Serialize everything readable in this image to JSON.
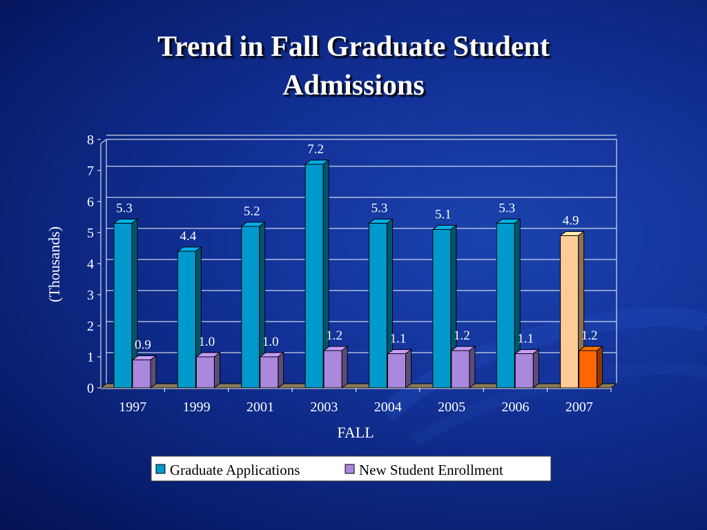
{
  "slide": {
    "title_line1": "Trend in Fall Graduate Student",
    "title_line2": "Admissions"
  },
  "colors": {
    "background": "#13339a",
    "applications": "#0099cc",
    "enrollment": "#aa88dd",
    "applications_highlight": "#ffcc99",
    "enrollment_highlight": "#ff6600",
    "label_text": "#ffffff"
  },
  "chart_data": {
    "type": "bar",
    "title": "",
    "xlabel": "FALL",
    "ylabel": "(Thousands)",
    "ylim": [
      0,
      8
    ],
    "yticks": [
      "0",
      "1",
      "2",
      "3",
      "4",
      "5",
      "6",
      "7",
      "8"
    ],
    "categories": [
      "1997",
      "1999",
      "2001",
      "2003",
      "2004",
      "2005",
      "2006",
      "2007"
    ],
    "series": [
      {
        "name": "Graduate Applications",
        "values": [
          5.3,
          4.4,
          5.2,
          7.2,
          5.3,
          5.1,
          5.3,
          4.9
        ],
        "labels": [
          "5.3",
          "4.4",
          "5.2",
          "7.2",
          "5.3",
          "5.1",
          "5.3",
          "4.9"
        ]
      },
      {
        "name": "New Student Enrollment",
        "values": [
          0.9,
          1.0,
          1.0,
          1.2,
          1.1,
          1.2,
          1.1,
          1.2
        ],
        "labels": [
          "0.9",
          "1.0",
          "1.0",
          "1.2",
          "1.1",
          "1.2",
          "1.1",
          "1.2"
        ]
      }
    ],
    "highlight_category": "2007",
    "grid": true,
    "legend_position": "bottom"
  }
}
